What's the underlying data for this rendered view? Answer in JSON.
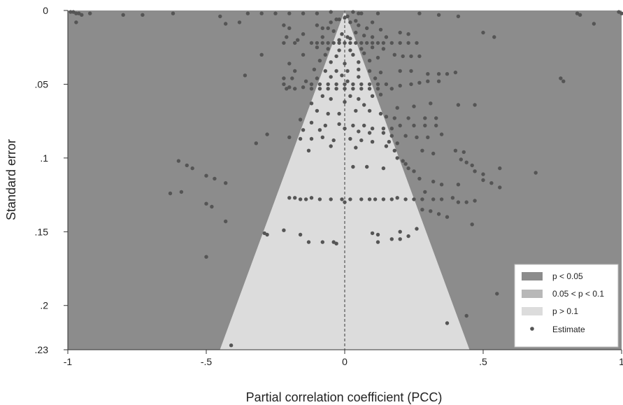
{
  "chart_data": {
    "type": "scatter",
    "title": "",
    "xlabel": "Partial correlation coefficient (PCC)",
    "ylabel": "Standard error",
    "xlim": [
      -1,
      1
    ],
    "ylim": [
      0,
      0.23
    ],
    "y_reversed": true,
    "x_ticks": [
      -1,
      -0.5,
      0,
      0.5,
      1
    ],
    "x_tick_labels": [
      "-1",
      "-.5",
      "0",
      ".5",
      "1"
    ],
    "y_ticks": [
      0,
      0.05,
      0.1,
      0.15,
      0.2,
      0.23
    ],
    "y_tick_labels": [
      "0",
      ".05",
      ".1",
      ".15",
      ".2",
      ".23"
    ],
    "grid": false,
    "reference_line_x": 0,
    "regions": [
      {
        "name": "p < 0.05",
        "color": "#8c8c8c",
        "z": 0
      },
      {
        "name": "0.05 < p < 0.1",
        "color": "#b8b8b8",
        "z": 1.645
      },
      {
        "name": "p > 0.1",
        "color": "#dcdcdc",
        "z": 1.96
      }
    ],
    "legend": {
      "placement": "bottom-right",
      "entries": [
        "p < 0.05",
        "0.05 < p < 0.1",
        "p > 0.1",
        "Estimate"
      ]
    },
    "marker_color": "#555555",
    "points": [
      [
        -0.99,
        0.001
      ],
      [
        -0.98,
        0.001
      ],
      [
        -0.97,
        0.002
      ],
      [
        -0.96,
        0.002
      ],
      [
        -0.95,
        0.003
      ],
      [
        -0.97,
        0.008
      ],
      [
        -0.92,
        0.002
      ],
      [
        -0.8,
        0.003
      ],
      [
        -0.73,
        0.003
      ],
      [
        -0.62,
        0.002
      ],
      [
        -0.45,
        0.004
      ],
      [
        -0.35,
        0.002
      ],
      [
        -0.3,
        0.002
      ],
      [
        -0.25,
        0.002
      ],
      [
        -0.2,
        0.002
      ],
      [
        -0.15,
        0.002
      ],
      [
        -0.1,
        0.002
      ],
      [
        -0.05,
        0.001
      ],
      [
        0.05,
        0.002
      ],
      [
        0.12,
        0.002
      ],
      [
        0.27,
        0.002
      ],
      [
        0.34,
        0.003
      ],
      [
        0.41,
        0.004
      ],
      [
        0.84,
        0.002
      ],
      [
        0.85,
        0.003
      ],
      [
        0.99,
        0.001
      ],
      [
        1.0,
        0.002
      ],
      [
        0.9,
        0.009
      ],
      [
        0.5,
        0.015
      ],
      [
        0.54,
        0.018
      ],
      [
        -0.43,
        0.009
      ],
      [
        -0.38,
        0.008
      ],
      [
        -0.22,
        0.01
      ],
      [
        -0.2,
        0.012
      ],
      [
        -0.21,
        0.018
      ],
      [
        -0.17,
        0.02
      ],
      [
        -0.1,
        0.01
      ],
      [
        -0.08,
        0.012
      ],
      [
        -0.05,
        0.008
      ],
      [
        -0.03,
        0.006
      ],
      [
        0.0,
        0.005
      ],
      [
        0.02,
        0.008
      ],
      [
        0.05,
        0.01
      ],
      [
        0.08,
        0.012
      ],
      [
        0.1,
        0.008
      ],
      [
        0.13,
        0.013
      ],
      [
        0.2,
        0.015
      ],
      [
        0.23,
        0.016
      ],
      [
        -0.15,
        0.016
      ],
      [
        0.15,
        0.018
      ],
      [
        -0.12,
        0.022
      ],
      [
        -0.1,
        0.022
      ],
      [
        -0.08,
        0.022
      ],
      [
        -0.06,
        0.022
      ],
      [
        -0.04,
        0.022
      ],
      [
        -0.02,
        0.022
      ],
      [
        0.0,
        0.022
      ],
      [
        0.02,
        0.022
      ],
      [
        0.04,
        0.022
      ],
      [
        0.06,
        0.022
      ],
      [
        0.08,
        0.022
      ],
      [
        0.1,
        0.022
      ],
      [
        0.12,
        0.022
      ],
      [
        0.14,
        0.022
      ],
      [
        0.17,
        0.022
      ],
      [
        0.2,
        0.022
      ],
      [
        0.23,
        0.022
      ],
      [
        0.26,
        0.022
      ],
      [
        -0.22,
        0.022
      ],
      [
        -0.18,
        0.022
      ],
      [
        -0.1,
        0.025
      ],
      [
        -0.06,
        0.026
      ],
      [
        -0.02,
        0.027
      ],
      [
        0.02,
        0.027
      ],
      [
        0.06,
        0.026
      ],
      [
        0.1,
        0.025
      ],
      [
        0.14,
        0.026
      ],
      [
        -0.15,
        0.03
      ],
      [
        0.18,
        0.03
      ],
      [
        0.21,
        0.031
      ],
      [
        0.24,
        0.031
      ],
      [
        0.27,
        0.031
      ],
      [
        -0.3,
        0.03
      ],
      [
        -0.09,
        0.034
      ],
      [
        -0.05,
        0.035
      ],
      [
        0.0,
        0.036
      ],
      [
        0.05,
        0.035
      ],
      [
        0.09,
        0.034
      ],
      [
        0.12,
        0.032
      ],
      [
        -0.2,
        0.036
      ],
      [
        -0.11,
        0.04
      ],
      [
        -0.07,
        0.041
      ],
      [
        -0.03,
        0.041
      ],
      [
        0.01,
        0.041
      ],
      [
        0.05,
        0.04
      ],
      [
        0.09,
        0.041
      ],
      [
        0.13,
        0.042
      ],
      [
        0.2,
        0.041
      ],
      [
        0.24,
        0.041
      ],
      [
        -0.18,
        0.041
      ],
      [
        0.3,
        0.043
      ],
      [
        0.34,
        0.043
      ],
      [
        0.37,
        0.043
      ],
      [
        0.4,
        0.042
      ],
      [
        -0.36,
        0.044
      ],
      [
        0.78,
        0.046
      ],
      [
        0.79,
        0.048
      ],
      [
        -0.22,
        0.046
      ],
      [
        -0.19,
        0.046
      ],
      [
        -0.14,
        0.048
      ],
      [
        -0.12,
        0.05
      ],
      [
        -0.09,
        0.05
      ],
      [
        -0.06,
        0.05
      ],
      [
        -0.03,
        0.05
      ],
      [
        0.0,
        0.05
      ],
      [
        0.03,
        0.05
      ],
      [
        0.06,
        0.05
      ],
      [
        0.09,
        0.05
      ],
      [
        0.12,
        0.05
      ],
      [
        0.15,
        0.05
      ],
      [
        -0.15,
        0.052
      ],
      [
        -0.12,
        0.053
      ],
      [
        -0.09,
        0.053
      ],
      [
        -0.06,
        0.053
      ],
      [
        -0.03,
        0.053
      ],
      [
        0.0,
        0.053
      ],
      [
        0.03,
        0.053
      ],
      [
        0.06,
        0.053
      ],
      [
        0.09,
        0.053
      ],
      [
        0.12,
        0.053
      ],
      [
        -0.18,
        0.053
      ],
      [
        -0.21,
        0.053
      ],
      [
        -0.22,
        0.05
      ],
      [
        -0.2,
        0.052
      ],
      [
        0.17,
        0.053
      ],
      [
        0.2,
        0.051
      ],
      [
        0.24,
        0.05
      ],
      [
        0.27,
        0.049
      ],
      [
        0.3,
        0.048
      ],
      [
        0.34,
        0.048
      ],
      [
        -0.08,
        0.058
      ],
      [
        -0.05,
        0.06
      ],
      [
        0.02,
        0.058
      ],
      [
        0.05,
        0.06
      ],
      [
        0.1,
        0.058
      ],
      [
        0.13,
        0.057
      ],
      [
        -0.12,
        0.063
      ],
      [
        0.0,
        0.062
      ],
      [
        0.07,
        0.064
      ],
      [
        0.19,
        0.066
      ],
      [
        0.25,
        0.065
      ],
      [
        0.31,
        0.063
      ],
      [
        0.41,
        0.064
      ],
      [
        0.47,
        0.064
      ],
      [
        -0.1,
        0.068
      ],
      [
        -0.06,
        0.07
      ],
      [
        -0.02,
        0.07
      ],
      [
        0.04,
        0.068
      ],
      [
        0.09,
        0.068
      ],
      [
        0.13,
        0.07
      ],
      [
        0.15,
        0.072
      ],
      [
        0.18,
        0.073
      ],
      [
        0.23,
        0.073
      ],
      [
        0.29,
        0.073
      ],
      [
        0.33,
        0.073
      ],
      [
        -0.16,
        0.074
      ],
      [
        -0.12,
        0.076
      ],
      [
        -0.07,
        0.078
      ],
      [
        -0.02,
        0.077
      ],
      [
        0.03,
        0.078
      ],
      [
        0.07,
        0.078
      ],
      [
        0.1,
        0.08
      ],
      [
        0.14,
        0.08
      ],
      [
        0.17,
        0.08
      ],
      [
        0.2,
        0.078
      ],
      [
        0.25,
        0.078
      ],
      [
        0.29,
        0.078
      ],
      [
        0.33,
        0.078
      ],
      [
        -0.15,
        0.081
      ],
      [
        -0.09,
        0.081
      ],
      [
        0.0,
        0.08
      ],
      [
        0.05,
        0.082
      ],
      [
        0.09,
        0.083
      ],
      [
        0.14,
        0.083
      ],
      [
        0.17,
        0.085
      ],
      [
        0.22,
        0.085
      ],
      [
        0.26,
        0.086
      ],
      [
        0.3,
        0.086
      ],
      [
        0.35,
        0.084
      ],
      [
        -0.28,
        0.084
      ],
      [
        -0.2,
        0.086
      ],
      [
        -0.16,
        0.087
      ],
      [
        -0.12,
        0.087
      ],
      [
        -0.08,
        0.086
      ],
      [
        -0.04,
        0.088
      ],
      [
        0.02,
        0.087
      ],
      [
        0.06,
        0.088
      ],
      [
        0.1,
        0.089
      ],
      [
        0.16,
        0.089
      ],
      [
        0.19,
        0.09
      ],
      [
        -0.32,
        0.09
      ],
      [
        -0.05,
        0.092
      ],
      [
        0.04,
        0.093
      ],
      [
        0.15,
        0.092
      ],
      [
        -0.13,
        0.095
      ],
      [
        0.18,
        0.095
      ],
      [
        0.28,
        0.095
      ],
      [
        0.32,
        0.097
      ],
      [
        0.4,
        0.095
      ],
      [
        0.43,
        0.096
      ],
      [
        0.19,
        0.1
      ],
      [
        0.21,
        0.102
      ],
      [
        0.22,
        0.104
      ],
      [
        0.42,
        0.101
      ],
      [
        0.44,
        0.103
      ],
      [
        0.46,
        0.105
      ],
      [
        0.23,
        0.107
      ],
      [
        0.25,
        0.109
      ],
      [
        0.47,
        0.109
      ],
      [
        0.5,
        0.111
      ],
      [
        0.03,
        0.106
      ],
      [
        0.08,
        0.106
      ],
      [
        0.14,
        0.107
      ],
      [
        0.56,
        0.107
      ],
      [
        0.69,
        0.11
      ],
      [
        -0.6,
        0.102
      ],
      [
        -0.57,
        0.105
      ],
      [
        -0.55,
        0.107
      ],
      [
        -0.5,
        0.112
      ],
      [
        -0.47,
        0.114
      ],
      [
        -0.43,
        0.117
      ],
      [
        0.27,
        0.114
      ],
      [
        0.32,
        0.116
      ],
      [
        0.35,
        0.118
      ],
      [
        0.41,
        0.118
      ],
      [
        0.5,
        0.115
      ],
      [
        0.53,
        0.117
      ],
      [
        0.56,
        0.12
      ],
      [
        0.29,
        0.123
      ],
      [
        -0.63,
        0.124
      ],
      [
        -0.59,
        0.123
      ],
      [
        -0.2,
        0.127
      ],
      [
        -0.18,
        0.127
      ],
      [
        -0.16,
        0.128
      ],
      [
        -0.14,
        0.128
      ],
      [
        -0.12,
        0.127
      ],
      [
        -0.09,
        0.128
      ],
      [
        -0.05,
        0.128
      ],
      [
        -0.01,
        0.128
      ],
      [
        0.0,
        0.13
      ],
      [
        0.02,
        0.128
      ],
      [
        0.06,
        0.128
      ],
      [
        0.09,
        0.128
      ],
      [
        0.11,
        0.128
      ],
      [
        0.14,
        0.128
      ],
      [
        0.17,
        0.128
      ],
      [
        0.19,
        0.127
      ],
      [
        0.22,
        0.128
      ],
      [
        0.25,
        0.128
      ],
      [
        0.28,
        0.128
      ],
      [
        0.32,
        0.128
      ],
      [
        0.35,
        0.128
      ],
      [
        0.39,
        0.127
      ],
      [
        0.41,
        0.13
      ],
      [
        0.44,
        0.13
      ],
      [
        0.47,
        0.129
      ],
      [
        -0.5,
        0.131
      ],
      [
        -0.48,
        0.133
      ],
      [
        0.28,
        0.135
      ],
      [
        0.31,
        0.136
      ],
      [
        0.34,
        0.138
      ],
      [
        0.37,
        0.14
      ],
      [
        -0.43,
        0.143
      ],
      [
        0.46,
        0.145
      ],
      [
        0.26,
        0.148
      ],
      [
        -0.22,
        0.149
      ],
      [
        -0.29,
        0.151
      ],
      [
        -0.28,
        0.152
      ],
      [
        -0.16,
        0.152
      ],
      [
        0.1,
        0.151
      ],
      [
        0.12,
        0.152
      ],
      [
        0.2,
        0.15
      ],
      [
        0.23,
        0.153
      ],
      [
        -0.13,
        0.157
      ],
      [
        -0.08,
        0.157
      ],
      [
        -0.04,
        0.157
      ],
      [
        -0.03,
        0.158
      ],
      [
        0.12,
        0.157
      ],
      [
        0.17,
        0.155
      ],
      [
        0.2,
        0.155
      ],
      [
        -0.5,
        0.167
      ],
      [
        0.55,
        0.192
      ],
      [
        0.37,
        0.212
      ],
      [
        0.44,
        0.207
      ],
      [
        -0.41,
        0.227
      ],
      [
        0.03,
        0.001
      ],
      [
        0.06,
        0.002
      ],
      [
        0.01,
        0.004
      ],
      [
        -0.02,
        0.006
      ],
      [
        0.04,
        0.007
      ],
      [
        -0.06,
        0.012
      ],
      [
        -0.04,
        0.014
      ],
      [
        -0.01,
        0.016
      ],
      [
        0.01,
        0.018
      ],
      [
        0.04,
        0.015
      ],
      [
        0.07,
        0.017
      ],
      [
        -0.08,
        0.018
      ],
      [
        0.1,
        0.018
      ],
      [
        -0.02,
        0.02
      ],
      [
        0.02,
        0.019
      ],
      [
        -0.07,
        0.03
      ],
      [
        -0.03,
        0.031
      ],
      [
        0.03,
        0.03
      ],
      [
        0.07,
        0.029
      ],
      [
        -0.05,
        0.045
      ],
      [
        0.05,
        0.045
      ],
      [
        0.01,
        0.048
      ],
      [
        -0.01,
        0.044
      ],
      [
        0.11,
        0.046
      ],
      [
        -0.1,
        0.046
      ]
    ]
  }
}
